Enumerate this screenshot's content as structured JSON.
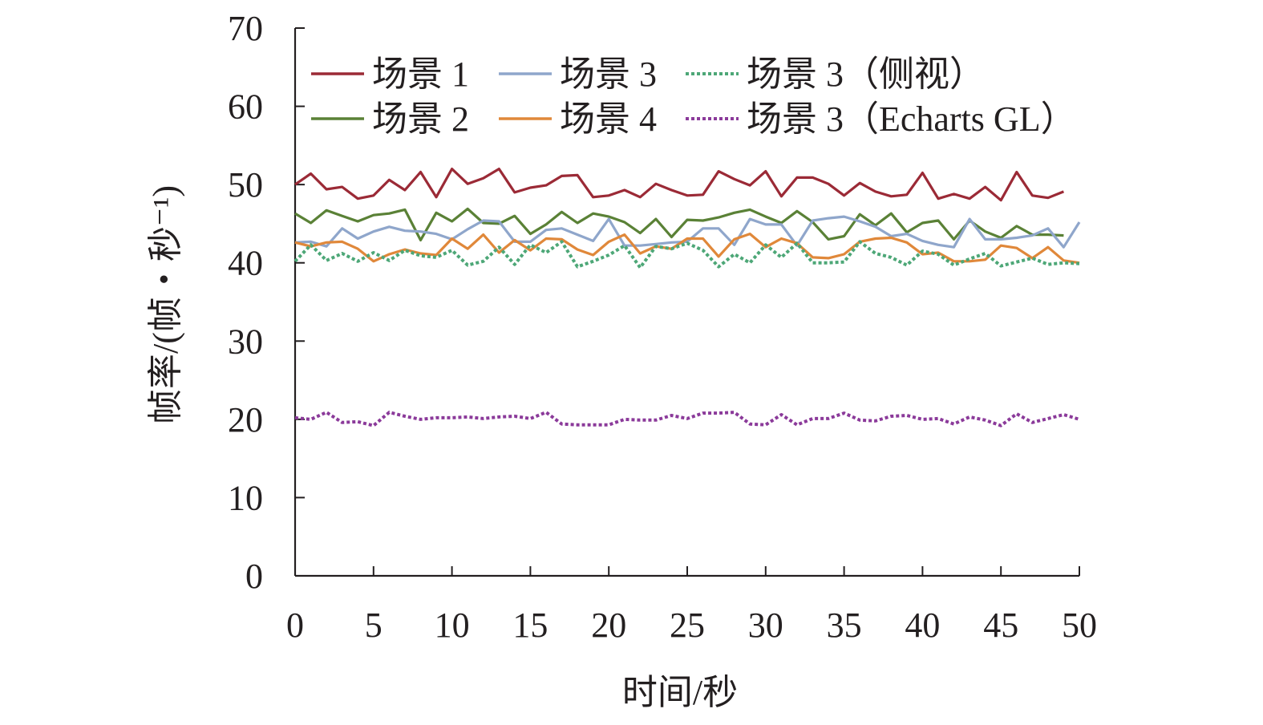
{
  "chart_data": {
    "type": "line",
    "xlabel": "时间/秒",
    "ylabel": "帧率/(帧・秒⁻¹)",
    "xlim": [
      0,
      50
    ],
    "ylim": [
      0,
      70
    ],
    "xticks": [
      0,
      5,
      10,
      15,
      20,
      25,
      30,
      35,
      40,
      45,
      50
    ],
    "yticks": [
      0,
      10,
      20,
      30,
      40,
      50,
      60,
      70
    ],
    "grid": false,
    "legend_position": "top",
    "x": [
      0,
      1,
      2,
      3,
      4,
      5,
      6,
      7,
      8,
      9,
      10,
      11,
      12,
      13,
      14,
      15,
      16,
      17,
      18,
      19,
      20,
      21,
      22,
      23,
      24,
      25,
      26,
      27,
      28,
      29,
      30,
      31,
      32,
      33,
      34,
      35,
      36,
      37,
      38,
      39,
      40,
      41,
      42,
      43,
      44,
      45,
      46,
      47,
      48,
      49,
      50
    ],
    "series": [
      {
        "name": "场景 1",
        "color": "#9b2a36",
        "dash": "solid",
        "values": [
          50.0,
          51.4,
          49.4,
          49.7,
          48.2,
          48.6,
          50.6,
          49.3,
          51.6,
          48.4,
          52.0,
          50.1,
          50.8,
          52.0,
          49.0,
          49.6,
          49.9,
          51.1,
          51.2,
          48.4,
          48.6,
          49.3,
          48.4,
          50.1,
          49.3,
          48.6,
          48.7,
          51.7,
          50.7,
          49.9,
          51.7,
          48.5,
          50.9,
          50.9,
          50.1,
          48.6,
          50.2,
          49.1,
          48.5,
          48.7,
          51.5,
          48.2,
          48.8,
          48.2,
          49.7,
          48.0,
          51.6,
          48.6,
          48.3,
          49.1,
          null
        ]
      },
      {
        "name": "场景 2",
        "color": "#5a8136",
        "dash": "solid",
        "values": [
          46.3,
          45.1,
          46.7,
          46.0,
          45.3,
          46.1,
          46.3,
          46.8,
          42.9,
          46.4,
          45.3,
          46.9,
          45.1,
          45.0,
          46.0,
          43.7,
          44.9,
          46.5,
          45.1,
          46.3,
          45.9,
          45.2,
          43.8,
          45.6,
          43.3,
          45.5,
          45.4,
          45.8,
          46.4,
          46.8,
          45.9,
          45.1,
          46.6,
          45.2,
          43.0,
          43.4,
          46.2,
          44.8,
          46.3,
          43.9,
          45.1,
          45.4,
          43.0,
          45.4,
          44.0,
          43.2,
          44.7,
          43.6,
          43.6,
          43.5,
          null
        ]
      },
      {
        "name": "场景 3",
        "color": "#8fa6cb",
        "dash": "solid",
        "values": [
          42.6,
          42.7,
          42.1,
          44.4,
          43.1,
          44.0,
          44.6,
          44.1,
          44.0,
          43.7,
          43.0,
          44.3,
          45.4,
          45.3,
          42.7,
          42.7,
          44.2,
          44.4,
          43.6,
          42.8,
          45.6,
          42.2,
          42.2,
          42.4,
          42.6,
          42.7,
          44.4,
          44.4,
          42.3,
          45.6,
          44.9,
          44.9,
          42.2,
          45.4,
          45.7,
          45.9,
          45.3,
          44.6,
          43.4,
          43.7,
          42.8,
          42.3,
          42.0,
          45.6,
          43.0,
          43.0,
          43.2,
          43.5,
          44.4,
          42.0,
          45.2
        ]
      },
      {
        "name": "场景 4",
        "color": "#e0883a",
        "dash": "solid",
        "values": [
          42.6,
          42.1,
          42.6,
          42.7,
          41.8,
          40.2,
          41.1,
          41.7,
          41.2,
          41.0,
          43.1,
          41.8,
          43.6,
          41.3,
          42.9,
          41.6,
          43.1,
          43.0,
          41.7,
          41.0,
          42.7,
          43.6,
          41.2,
          42.1,
          41.8,
          43.1,
          43.1,
          40.8,
          43.0,
          43.7,
          42.0,
          43.1,
          42.5,
          40.7,
          40.6,
          41.1,
          42.7,
          43.1,
          43.2,
          42.6,
          41.1,
          41.3,
          40.2,
          40.2,
          40.4,
          42.2,
          41.9,
          40.6,
          42.0,
          40.3,
          40.0
        ]
      },
      {
        "name": "场景 3（侧视）",
        "color": "#4da777",
        "dash": "dotted",
        "values": [
          40.2,
          42.3,
          40.3,
          41.2,
          40.2,
          41.3,
          40.3,
          41.6,
          40.9,
          40.7,
          41.6,
          39.7,
          40.2,
          42.0,
          39.8,
          42.3,
          41.3,
          42.7,
          39.5,
          40.2,
          41.0,
          42.2,
          39.4,
          42.1,
          41.8,
          42.5,
          41.6,
          39.5,
          41.1,
          40.0,
          42.3,
          40.7,
          42.5,
          40.0,
          40.0,
          40.1,
          42.7,
          41.2,
          40.7,
          39.7,
          41.5,
          41.1,
          39.7,
          40.5,
          41.2,
          39.6,
          40.1,
          40.6,
          39.8,
          40.0,
          39.9
        ]
      },
      {
        "name": "场景 3（Echarts GL）",
        "color": "#8b3a9a",
        "dash": "dotted",
        "values": [
          20.2,
          20.0,
          20.9,
          19.6,
          19.7,
          19.2,
          20.9,
          20.4,
          20.0,
          20.2,
          20.2,
          20.3,
          20.1,
          20.3,
          20.4,
          20.1,
          20.9,
          19.4,
          19.3,
          19.3,
          19.3,
          20.0,
          19.9,
          19.9,
          20.5,
          20.1,
          20.8,
          20.8,
          20.9,
          19.4,
          19.3,
          20.6,
          19.3,
          20.1,
          20.1,
          20.8,
          19.9,
          19.8,
          20.4,
          20.5,
          20.0,
          20.1,
          19.4,
          20.3,
          19.9,
          19.2,
          20.7,
          19.6,
          20.1,
          20.6,
          20.0
        ]
      }
    ]
  }
}
